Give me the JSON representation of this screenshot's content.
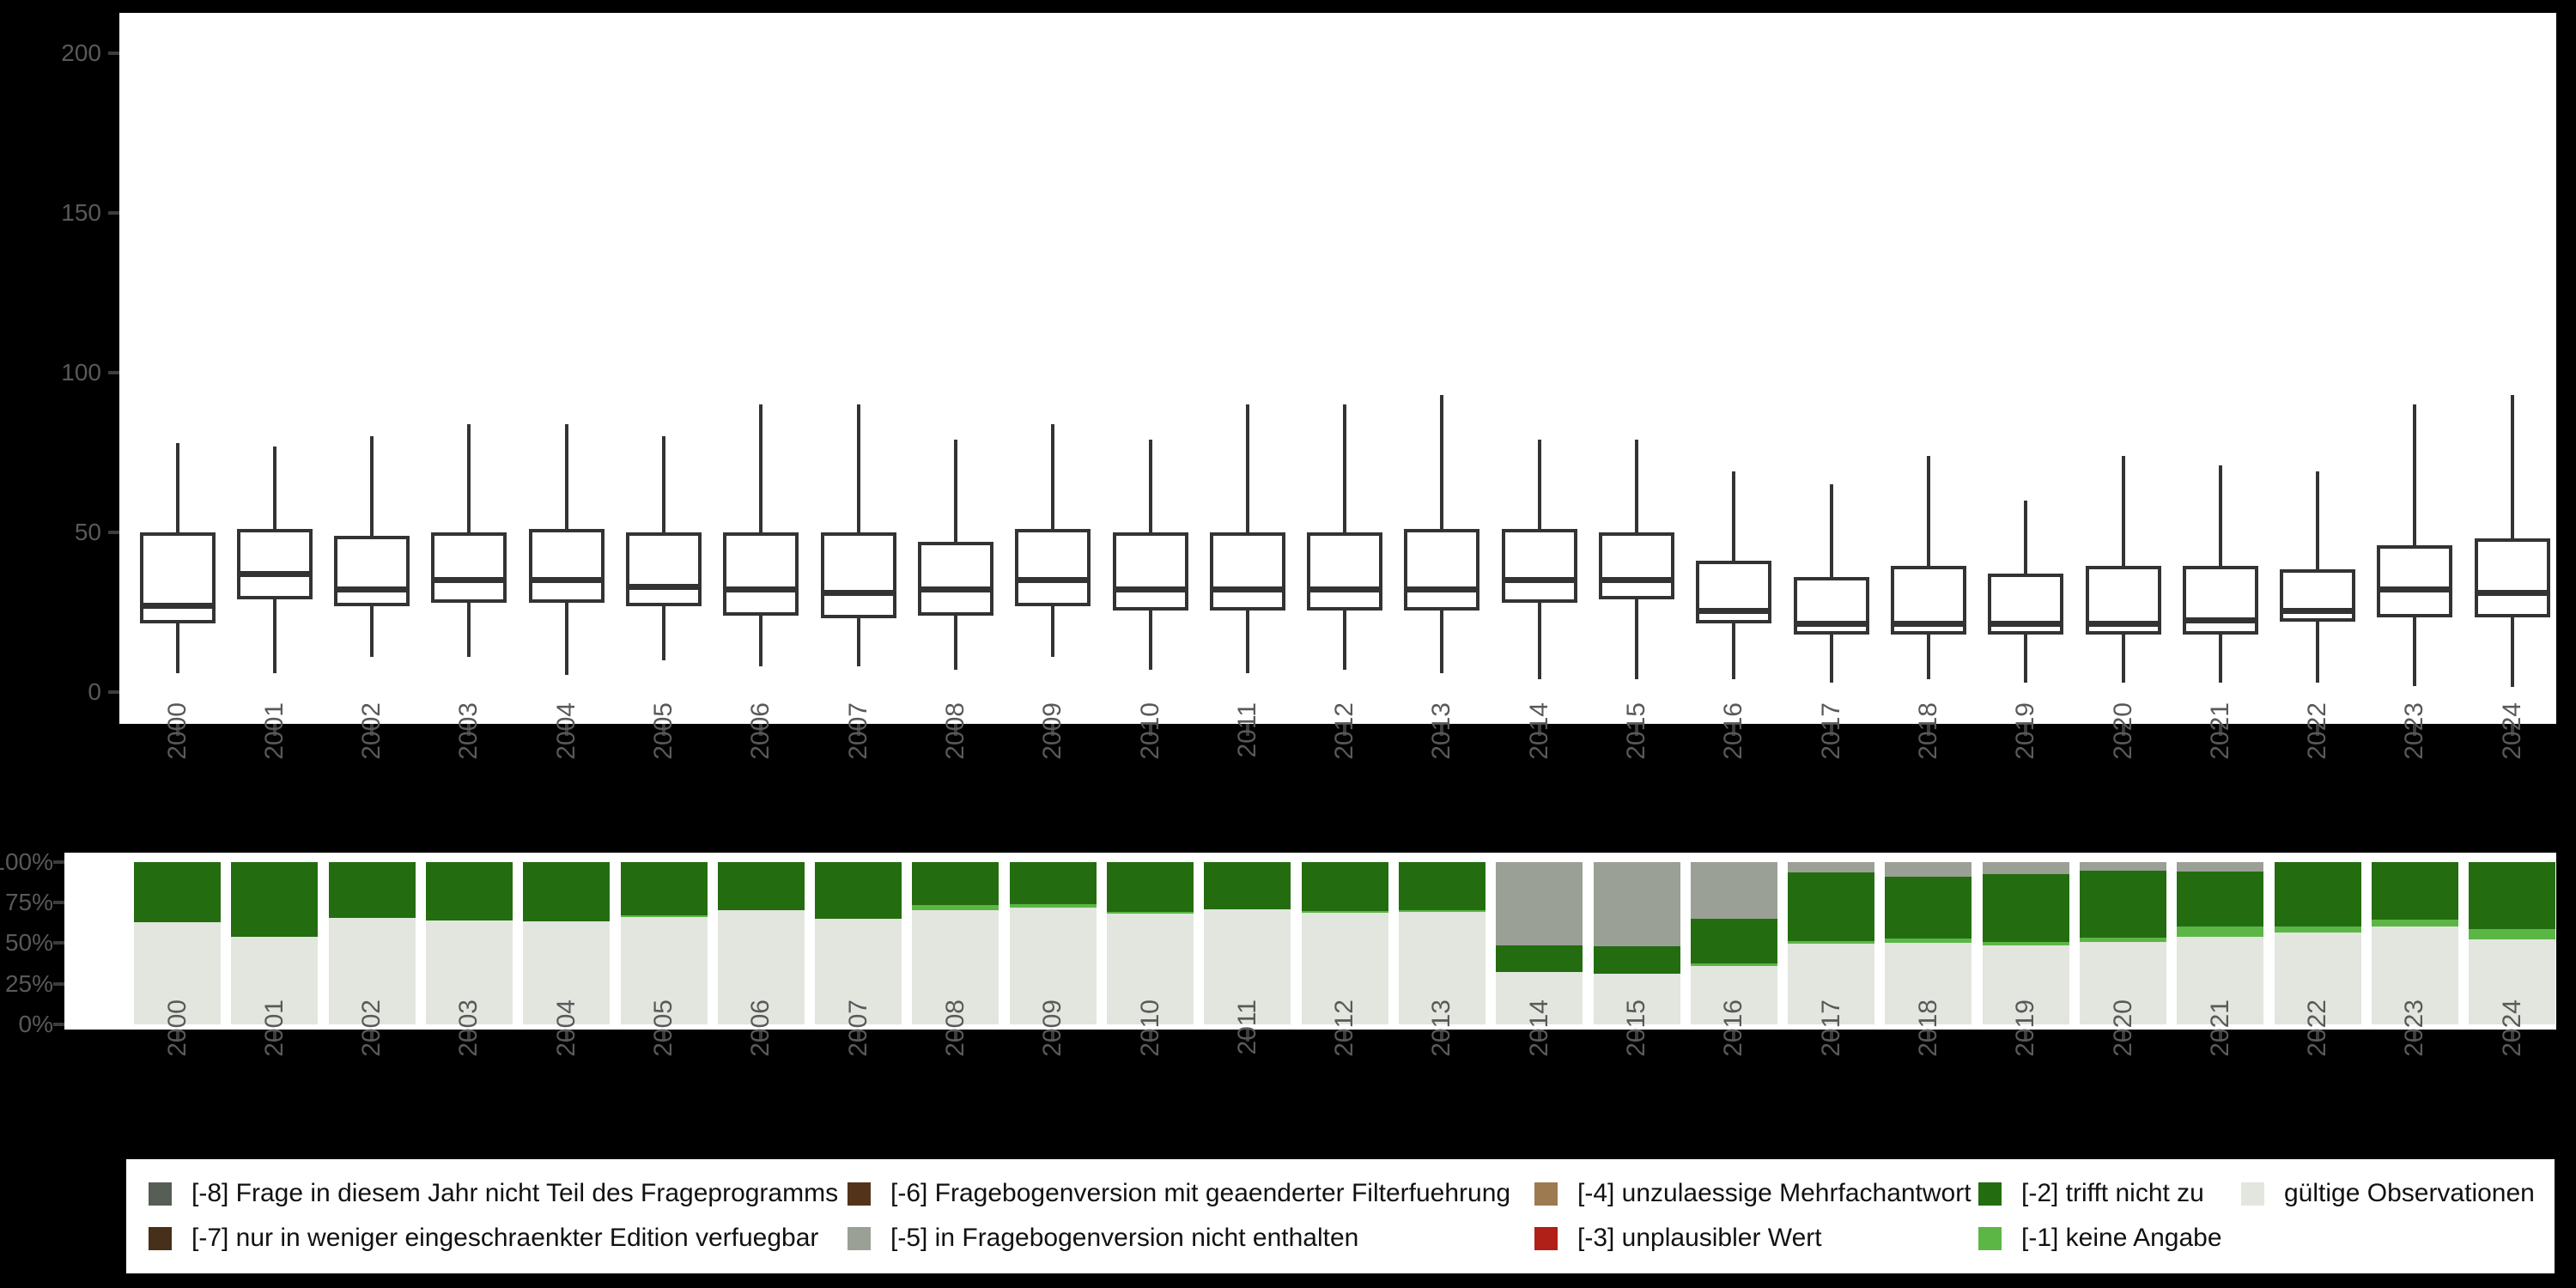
{
  "colors": {
    "background": "#000000",
    "panel": "#ffffff",
    "box_stroke": "#333333",
    "axis_text": "#595959",
    "valid": "#e2e6df",
    "m1": "#5cb646",
    "m2": "#236d10",
    "m3": "#b01f18",
    "m4": "#9e7a50",
    "m5": "#9aa096",
    "m6": "#53341b",
    "m7": "#46301a",
    "m8": "#565e55"
  },
  "chart_data": [
    {
      "type": "boxplot",
      "title": "",
      "xlabel": "",
      "ylabel": "",
      "x": [
        "2000",
        "2001",
        "2002",
        "2003",
        "2004",
        "2005",
        "2006",
        "2007",
        "2008",
        "2009",
        "2010",
        "2011",
        "2012",
        "2013",
        "2014",
        "2015",
        "2016",
        "2017",
        "2018",
        "2019",
        "2020",
        "2021",
        "2022",
        "2023",
        "2024"
      ],
      "y_tick_labels": [
        "0",
        "50",
        "100",
        "150",
        "200"
      ],
      "y_tick_values": [
        0,
        50,
        100,
        150,
        200
      ],
      "ylim": [
        -10,
        210
      ],
      "grid": false,
      "boxes": [
        {
          "year": "2000",
          "lo": 6,
          "q1": 21.5,
          "med": 27,
          "q3": 50,
          "hi": 78
        },
        {
          "year": "2001",
          "lo": 6,
          "q1": 29,
          "med": 37,
          "q3": 51,
          "hi": 77
        },
        {
          "year": "2002",
          "lo": 11,
          "q1": 27,
          "med": 32,
          "q3": 49,
          "hi": 80
        },
        {
          "year": "2003",
          "lo": 11,
          "q1": 28,
          "med": 35,
          "q3": 50,
          "hi": 84
        },
        {
          "year": "2004",
          "lo": 5.5,
          "q1": 28,
          "med": 35,
          "q3": 51,
          "hi": 84
        },
        {
          "year": "2005",
          "lo": 10,
          "q1": 27,
          "med": 33,
          "q3": 50,
          "hi": 80
        },
        {
          "year": "2006",
          "lo": 8,
          "q1": 24,
          "med": 32,
          "q3": 50,
          "hi": 90
        },
        {
          "year": "2007",
          "lo": 8,
          "q1": 23,
          "med": 31,
          "q3": 50,
          "hi": 90
        },
        {
          "year": "2008",
          "lo": 7,
          "q1": 24,
          "med": 32,
          "q3": 47,
          "hi": 79
        },
        {
          "year": "2009",
          "lo": 11,
          "q1": 27,
          "med": 35,
          "q3": 51,
          "hi": 84
        },
        {
          "year": "2010",
          "lo": 7,
          "q1": 25.5,
          "med": 32,
          "q3": 50,
          "hi": 79
        },
        {
          "year": "2011",
          "lo": 6,
          "q1": 25.5,
          "med": 32,
          "q3": 50,
          "hi": 90
        },
        {
          "year": "2012",
          "lo": 7,
          "q1": 25.5,
          "med": 32,
          "q3": 50,
          "hi": 90
        },
        {
          "year": "2013",
          "lo": 6,
          "q1": 25.5,
          "med": 32,
          "q3": 51,
          "hi": 93
        },
        {
          "year": "2014",
          "lo": 4,
          "q1": 28,
          "med": 35,
          "q3": 51,
          "hi": 79
        },
        {
          "year": "2015",
          "lo": 4,
          "q1": 29,
          "med": 35,
          "q3": 50,
          "hi": 79
        },
        {
          "year": "2016",
          "lo": 4,
          "q1": 21.5,
          "med": 25.5,
          "q3": 41,
          "hi": 69
        },
        {
          "year": "2017",
          "lo": 3,
          "q1": 18,
          "med": 21.5,
          "q3": 36,
          "hi": 65
        },
        {
          "year": "2018",
          "lo": 4,
          "q1": 18,
          "med": 21.5,
          "q3": 39.5,
          "hi": 74
        },
        {
          "year": "2019",
          "lo": 3,
          "q1": 18,
          "med": 21.5,
          "q3": 37,
          "hi": 60
        },
        {
          "year": "2020",
          "lo": 3,
          "q1": 18,
          "med": 21.5,
          "q3": 39.5,
          "hi": 74
        },
        {
          "year": "2021",
          "lo": 3,
          "q1": 18,
          "med": 22.5,
          "q3": 39.5,
          "hi": 71
        },
        {
          "year": "2022",
          "lo": 3,
          "q1": 22,
          "med": 25.5,
          "q3": 38.5,
          "hi": 69
        },
        {
          "year": "2023",
          "lo": 2,
          "q1": 23.5,
          "med": 32,
          "q3": 46,
          "hi": 90
        },
        {
          "year": "2024",
          "lo": 1.5,
          "q1": 23.5,
          "med": 31,
          "q3": 48,
          "hi": 93
        }
      ]
    },
    {
      "type": "bar",
      "stacked": true,
      "title": "",
      "xlabel": "",
      "ylabel": "",
      "x": [
        "2000",
        "2001",
        "2002",
        "2003",
        "2004",
        "2005",
        "2006",
        "2007",
        "2008",
        "2009",
        "2010",
        "2011",
        "2012",
        "2013",
        "2014",
        "2015",
        "2016",
        "2017",
        "2018",
        "2019",
        "2020",
        "2021",
        "2022",
        "2023",
        "2024"
      ],
      "y_tick_labels": [
        "0%",
        "25%",
        "50%",
        "75%",
        "100%"
      ],
      "y_tick_values": [
        0,
        25,
        50,
        75,
        100
      ],
      "ylim": [
        0,
        100
      ],
      "grid": false,
      "stack_order": [
        "valid",
        "m1",
        "m2",
        "m3",
        "m4",
        "m5",
        "m6",
        "m7",
        "m8"
      ],
      "series": [
        {
          "key": "valid",
          "name": "gültige Observationen",
          "values": [
            63,
            54,
            65.5,
            64,
            63.5,
            66,
            70.5,
            65,
            70,
            72,
            68,
            71,
            68.5,
            69,
            32,
            31,
            36,
            49.5,
            50,
            48.5,
            50.5,
            54,
            56.5,
            60,
            52.5
          ]
        },
        {
          "key": "m1",
          "name": "[-1] keine Angabe",
          "values": [
            0,
            0,
            0,
            0,
            0,
            1,
            0,
            0,
            3.5,
            2,
            1.2,
            0,
            1.2,
            1.5,
            0,
            0,
            1.5,
            1.8,
            3,
            2,
            2.7,
            6.2,
            3.6,
            4.5,
            6
          ]
        },
        {
          "key": "m2",
          "name": "[-2] trifft nicht zu",
          "values": [
            37,
            46,
            34.5,
            36,
            36.5,
            33,
            29.5,
            35,
            26.5,
            26,
            30.8,
            29,
            30.3,
            29.5,
            16.6,
            17.3,
            27.5,
            42.3,
            38,
            41.8,
            41.5,
            33.9,
            39.9,
            35.5,
            41.5
          ]
        },
        {
          "key": "m5",
          "name": "[-5] in Fragebogenversion nicht enthalten",
          "values": [
            0,
            0,
            0,
            0,
            0,
            0,
            0,
            0,
            0,
            0,
            0,
            0,
            0,
            0,
            51.4,
            51.7,
            35,
            6.4,
            9,
            7.7,
            5.3,
            5.9,
            0,
            0,
            0
          ]
        }
      ]
    }
  ],
  "legend": {
    "rows": [
      [
        {
          "key": "m8",
          "label": "[-8] Frage in diesem Jahr nicht Teil des Frageprogramms"
        },
        {
          "key": "m6",
          "label": "[-6] Fragebogenversion mit geaenderter Filterfuehrung"
        },
        {
          "key": "m4",
          "label": "[-4] unzulaessige Mehrfachantwort"
        },
        {
          "key": "m2",
          "label": "[-2] trifft nicht zu"
        },
        {
          "key": "valid",
          "label": "gültige Observationen"
        }
      ],
      [
        {
          "key": "m7",
          "label": "[-7] nur in weniger eingeschraenkter Edition verfuegbar"
        },
        {
          "key": "m5",
          "label": "[-5] in Fragebogenversion nicht enthalten"
        },
        {
          "key": "m3",
          "label": "[-3] unplausibler Wert"
        },
        {
          "key": "m1",
          "label": "[-1] keine Angabe"
        }
      ]
    ]
  }
}
